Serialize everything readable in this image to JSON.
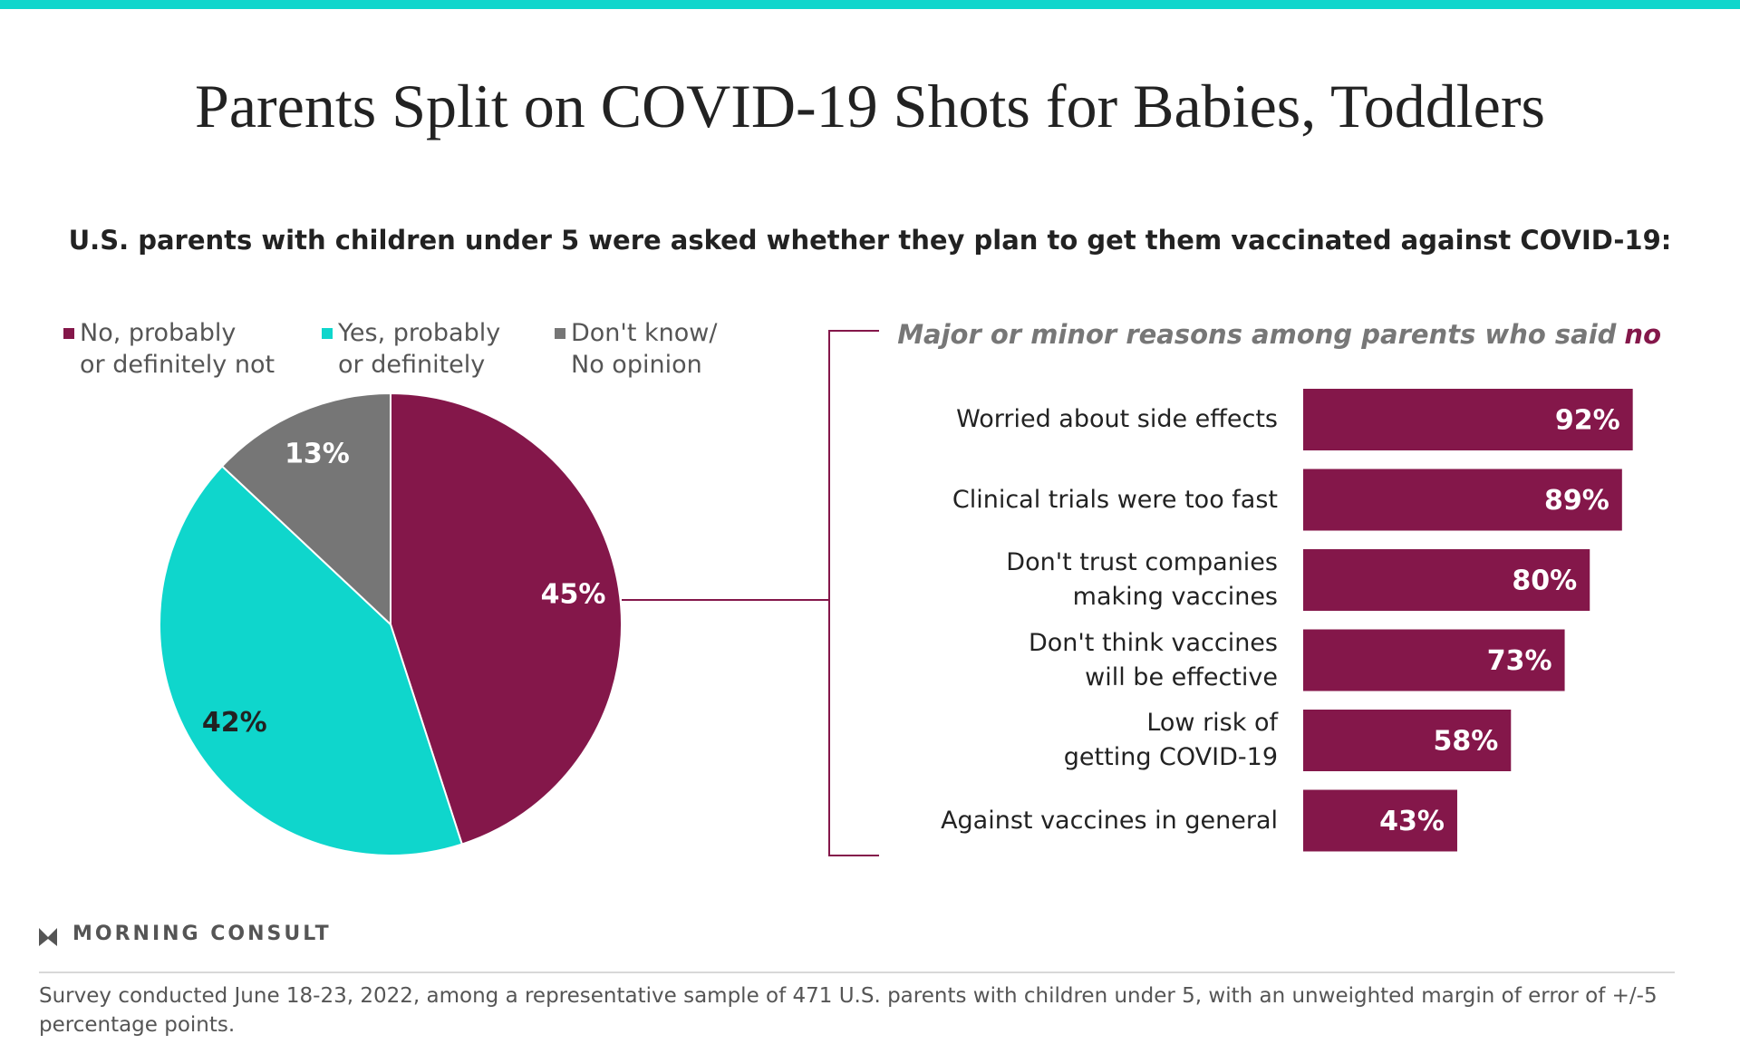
{
  "title": "Parents Split on COVID-19 Shots for Babies, Toddlers",
  "subtitle": "U.S. parents with children under 5 were asked whether they plan to get them vaccinated against COVID-19:",
  "brand": "MORNING CONSULT",
  "footnote": "Survey conducted June 18-23, 2022, among a representative sample of 471 U.S. parents with children under 5, with an unweighted margin of error of +/-5 percentage points.",
  "chart_data": [
    {
      "type": "pie",
      "categories": [
        "No, probably\nor definitely not",
        "Yes, probably\nor definitely",
        "Don't know/\nNo opinion"
      ],
      "values": [
        45,
        42,
        13
      ],
      "value_labels": [
        "45%",
        "42%",
        "13%"
      ],
      "colors": [
        "#84174a",
        "#0fd6cc",
        "#767676"
      ]
    },
    {
      "type": "hbar",
      "title": "Major or minor reasons among parents who said",
      "title_emphasis": "no",
      "categories": [
        "Worried about side effects",
        "Clinical trials were too fast",
        "Don't trust companies\nmaking vaccines",
        "Don't think vaccines\nwill be effective",
        "Low risk of\ngetting COVID-19",
        "Against vaccines in general"
      ],
      "values": [
        92,
        89,
        80,
        73,
        58,
        43
      ],
      "value_labels": [
        "92%",
        "89%",
        "80%",
        "73%",
        "58%",
        "43%"
      ],
      "color": "#84174a"
    }
  ]
}
